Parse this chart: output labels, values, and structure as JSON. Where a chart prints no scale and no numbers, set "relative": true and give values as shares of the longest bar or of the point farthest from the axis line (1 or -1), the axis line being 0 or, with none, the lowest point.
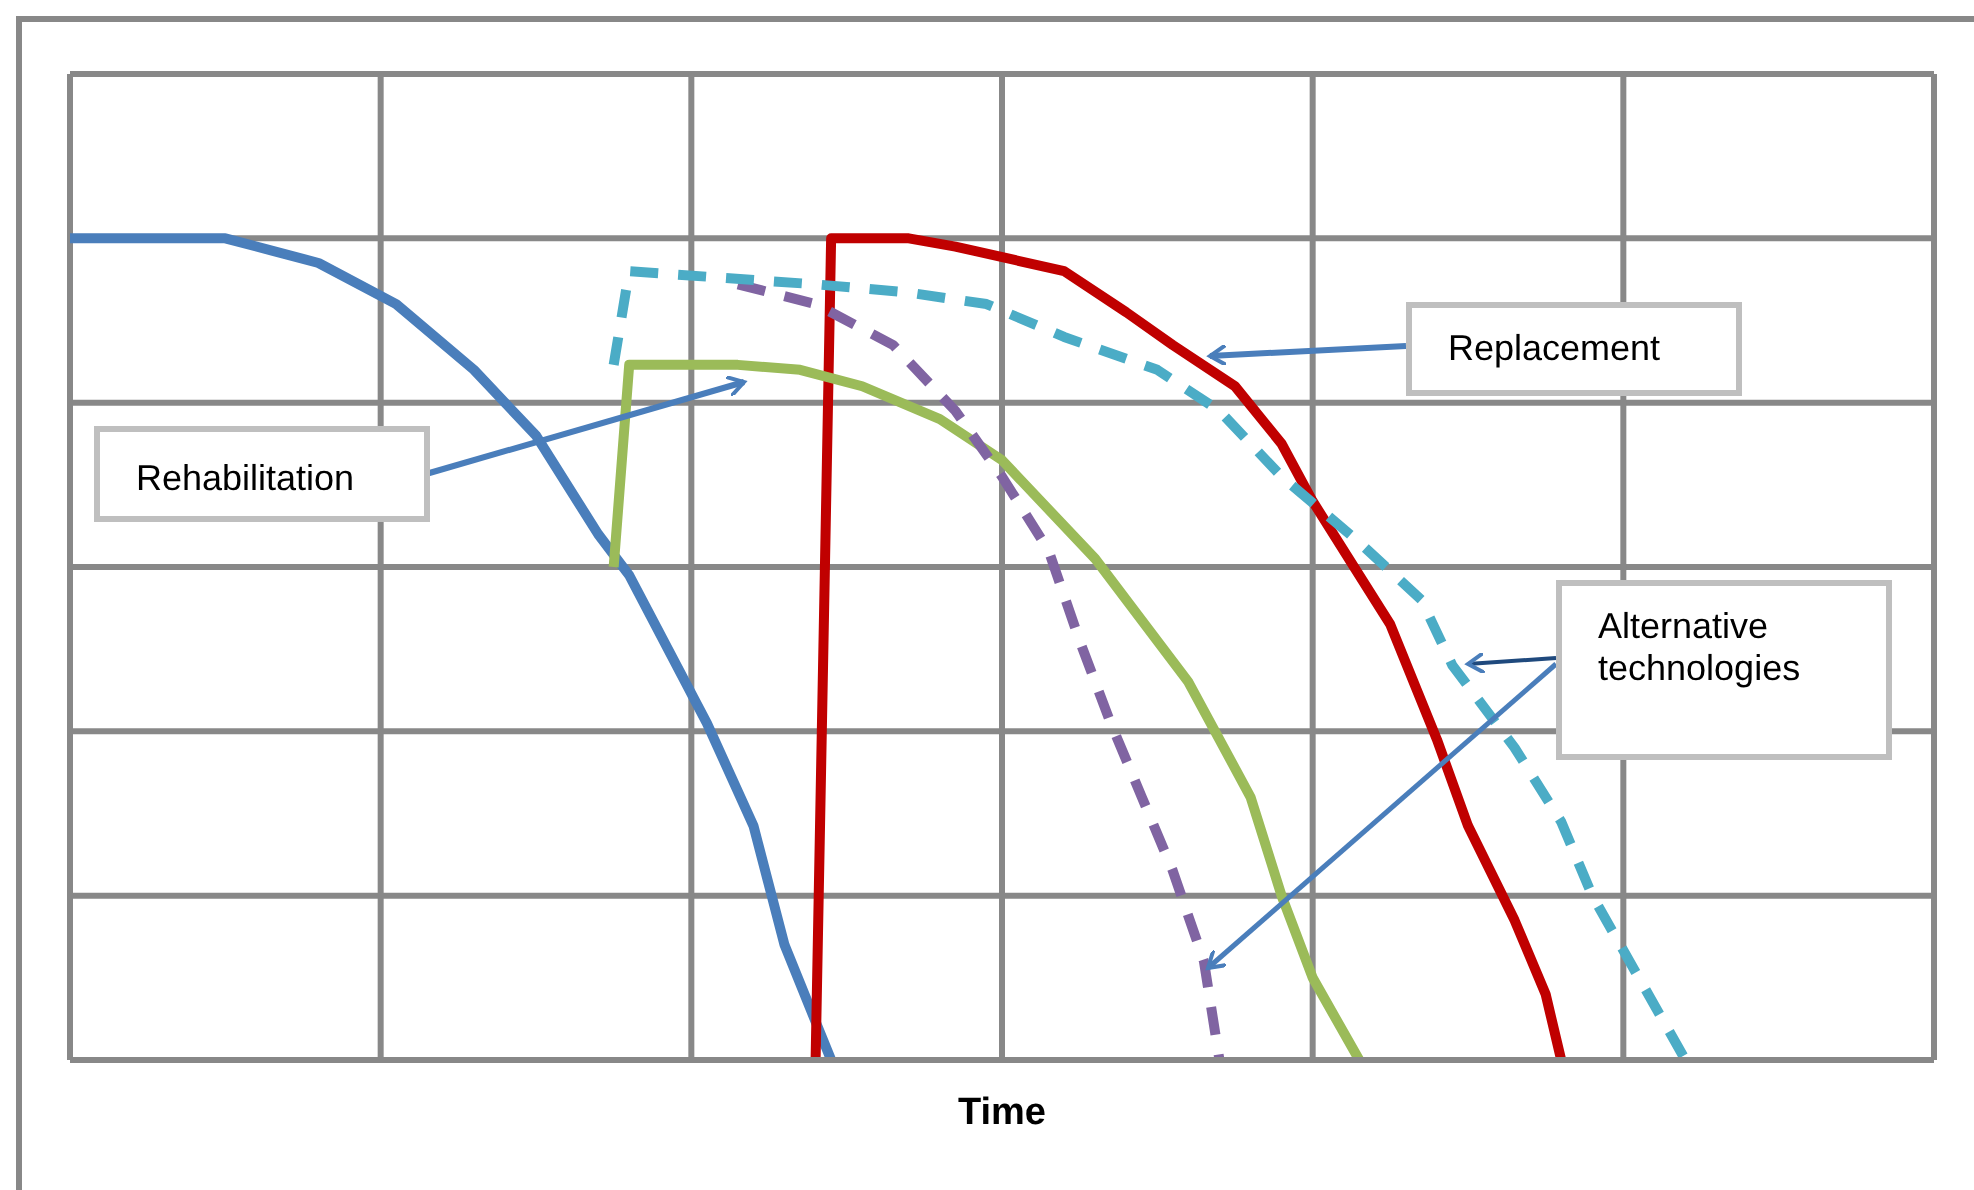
{
  "chart_data": {
    "type": "line",
    "relative": true,
    "xlabel": "Time",
    "grid": true,
    "marker": "none",
    "categories": [
      null,
      null,
      null,
      null,
      null,
      null,
      null,
      null,
      null,
      null,
      null,
      null,
      null,
      null,
      null,
      null,
      null,
      null,
      null,
      null,
      null,
      null,
      null,
      null,
      null,
      null,
      null,
      null,
      null,
      null,
      null,
      null,
      null,
      null,
      null,
      null,
      null,
      null,
      null,
      null,
      null,
      null,
      null,
      null,
      null,
      null,
      null,
      null,
      null,
      null,
      null,
      null,
      null,
      null,
      null,
      null,
      null,
      null,
      null,
      null,
      null,
      null,
      null,
      null,
      null,
      null,
      null,
      null,
      null,
      null,
      null,
      null,
      null,
      null,
      null,
      null,
      null,
      null,
      null,
      null,
      null,
      null,
      null,
      null,
      null,
      null,
      null,
      null,
      null,
      null,
      null,
      null,
      null,
      null,
      null,
      null,
      null,
      null,
      null,
      null,
      null,
      null,
      null,
      null,
      null,
      null,
      null,
      null,
      null,
      null,
      null,
      null,
      null,
      null,
      null,
      null,
      null,
      null,
      null,
      null,
      null
    ],
    "series": [
      {
        "color": "#4a7ebb",
        "line_style": "solid",
        "values": [
          1.0,
          null,
          null,
          null,
          null,
          null,
          null,
          null,
          null,
          null,
          1.0,
          null,
          null,
          null,
          null,
          null,
          0.97,
          null,
          null,
          null,
          null,
          0.92,
          null,
          null,
          null,
          null,
          0.84,
          null,
          null,
          null,
          0.76,
          null,
          null,
          null,
          0.64,
          null,
          0.59,
          null,
          null,
          null,
          null,
          0.41,
          null,
          null,
          0.285,
          null,
          0.14,
          null,
          null,
          0,
          null,
          null,
          null,
          null,
          null,
          null,
          null,
          null,
          null,
          null,
          null,
          null,
          null,
          null,
          null,
          null,
          null,
          null,
          null,
          null,
          null,
          null,
          null,
          null,
          null,
          null,
          null,
          null,
          null,
          null,
          null,
          null,
          null,
          null,
          null,
          null,
          null,
          null,
          null,
          null,
          null,
          null,
          null,
          null,
          null,
          null,
          null,
          null,
          null,
          null,
          null,
          null,
          null,
          null,
          null,
          null,
          null,
          null,
          null,
          null,
          null,
          null,
          null,
          null,
          null,
          null,
          null,
          null,
          null,
          null,
          null
        ]
      },
      {
        "color": "#c00000",
        "line_style": "solid",
        "values": [
          null,
          null,
          null,
          null,
          null,
          null,
          null,
          null,
          null,
          null,
          null,
          null,
          null,
          null,
          null,
          null,
          null,
          null,
          null,
          null,
          null,
          null,
          null,
          null,
          null,
          null,
          null,
          null,
          null,
          null,
          null,
          null,
          null,
          null,
          null,
          null,
          null,
          null,
          null,
          null,
          null,
          null,
          null,
          null,
          null,
          null,
          null,
          null,
          0,
          1.0,
          null,
          null,
          null,
          null,
          1.0,
          null,
          null,
          0.99,
          null,
          null,
          null,
          null,
          null,
          null,
          0.96,
          null,
          null,
          null,
          0.91,
          null,
          null,
          0.87,
          null,
          null,
          null,
          0.82,
          null,
          null,
          0.75,
          null,
          0.68,
          null,
          null,
          0.59,
          null,
          0.53,
          null,
          null,
          0.39,
          null,
          0.285,
          null,
          null,
          0.17,
          null,
          0.08,
          0,
          null,
          null,
          null,
          null,
          null,
          null,
          null,
          null,
          null,
          null,
          null,
          null,
          null,
          null,
          null,
          null,
          null,
          null,
          null,
          null,
          null,
          null,
          null,
          null
        ]
      },
      {
        "color": "#9bbb59",
        "line_style": "solid",
        "values": [
          null,
          null,
          null,
          null,
          null,
          null,
          null,
          null,
          null,
          null,
          null,
          null,
          null,
          null,
          null,
          null,
          null,
          null,
          null,
          null,
          null,
          null,
          null,
          null,
          null,
          null,
          null,
          null,
          null,
          null,
          null,
          null,
          null,
          null,
          null,
          0.6,
          0.846,
          null,
          null,
          null,
          null,
          null,
          null,
          0.846,
          null,
          null,
          null,
          0.84,
          null,
          null,
          null,
          0.82,
          null,
          null,
          null,
          null,
          0.78,
          null,
          null,
          null,
          0.73,
          null,
          null,
          null,
          null,
          null,
          0.61,
          null,
          null,
          null,
          null,
          null,
          0.46,
          null,
          null,
          null,
          0.32,
          null,
          0.2,
          null,
          0.1,
          null,
          null,
          0,
          null,
          null,
          null,
          null,
          null,
          null,
          null,
          null,
          null,
          null,
          null,
          null,
          null,
          null,
          null,
          null,
          null,
          null,
          null,
          null,
          null,
          null,
          null,
          null,
          null,
          null,
          null,
          null,
          null,
          null,
          null,
          null,
          null,
          null,
          null,
          null,
          null
        ]
      },
      {
        "color": "#8064a2",
        "line_style": "dashed",
        "values": [
          null,
          null,
          null,
          null,
          null,
          null,
          null,
          null,
          null,
          null,
          null,
          null,
          null,
          null,
          null,
          null,
          null,
          null,
          null,
          null,
          null,
          null,
          null,
          null,
          null,
          null,
          null,
          null,
          null,
          null,
          null,
          null,
          null,
          null,
          null,
          null,
          null,
          null,
          null,
          null,
          null,
          null,
          null,
          0.944,
          null,
          null,
          null,
          null,
          0.92,
          null,
          null,
          null,
          null,
          0.87,
          null,
          null,
          null,
          0.79,
          null,
          null,
          0.71,
          null,
          null,
          0.62,
          null,
          0.51,
          null,
          0.41,
          null,
          0.32,
          null,
          0.23,
          null,
          0.12,
          0,
          null,
          null,
          null,
          null,
          null,
          null,
          null,
          null,
          null,
          null,
          null,
          null,
          null,
          null,
          null,
          null,
          null,
          null,
          null,
          null,
          null,
          null,
          null,
          null,
          null,
          null,
          null,
          null,
          null,
          null,
          null,
          null,
          null,
          null,
          null,
          null,
          null,
          null,
          null,
          null,
          null,
          null,
          null,
          null,
          null,
          null
        ]
      },
      {
        "color": "#4bacc6",
        "line_style": "dashed",
        "values": [
          null,
          null,
          null,
          null,
          null,
          null,
          null,
          null,
          null,
          null,
          null,
          null,
          null,
          null,
          null,
          null,
          null,
          null,
          null,
          null,
          null,
          null,
          null,
          null,
          null,
          null,
          null,
          null,
          null,
          null,
          null,
          null,
          null,
          null,
          null,
          0.846,
          0.96,
          null,
          null,
          null,
          null,
          null,
          null,
          null,
          null,
          null,
          null,
          null,
          0.944,
          null,
          null,
          null,
          null,
          null,
          0.934,
          null,
          null,
          null,
          null,
          0.92,
          null,
          null,
          null,
          null,
          0.88,
          null,
          null,
          null,
          null,
          null,
          0.84,
          null,
          null,
          null,
          0.79,
          null,
          null,
          null,
          0.71,
          null,
          null,
          null,
          null,
          0.63,
          null,
          null,
          null,
          0.56,
          null,
          0.48,
          null,
          null,
          null,
          0.38,
          null,
          null,
          0.29,
          null,
          0.2,
          null,
          null,
          0.1,
          null,
          null,
          0,
          null,
          null,
          null,
          null,
          null,
          null,
          null,
          null,
          null,
          null,
          null,
          null,
          null,
          null,
          null,
          null
        ]
      }
    ],
    "annotations": [
      "Replacement",
      "Rehabilitation",
      "Alternative technologies"
    ]
  }
}
